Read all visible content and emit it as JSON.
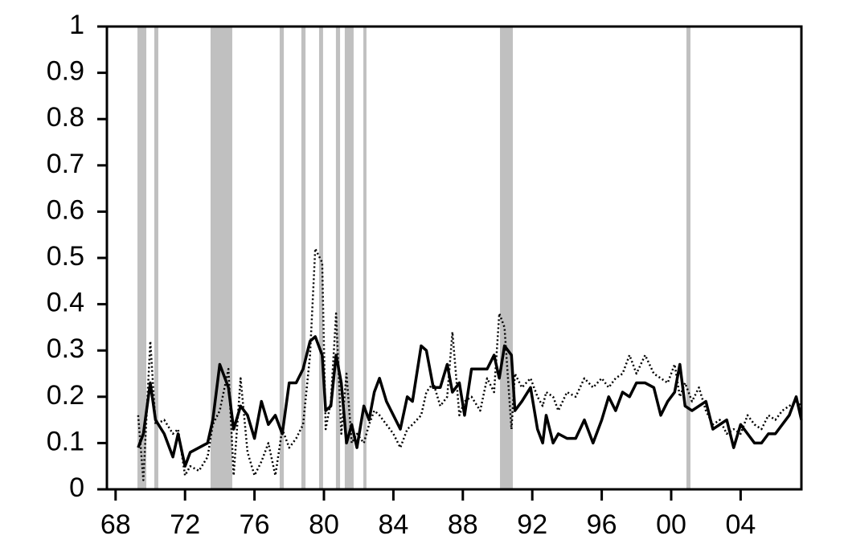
{
  "chart_data": {
    "type": "line",
    "x": [
      1969.3,
      1969.6,
      1970.0,
      1970.3,
      1970.8,
      1971.3,
      1971.6,
      1972.0,
      1972.3,
      1972.8,
      1973.3,
      1973.6,
      1974.0,
      1974.5,
      1974.8,
      1975.2,
      1975.6,
      1976.0,
      1976.4,
      1976.8,
      1977.2,
      1977.6,
      1978.0,
      1978.4,
      1978.8,
      1979.2,
      1979.5,
      1979.9,
      1980.1,
      1980.4,
      1980.7,
      1981.0,
      1981.3,
      1981.6,
      1981.9,
      1982.3,
      1982.6,
      1982.9,
      1983.2,
      1983.6,
      1984.0,
      1984.4,
      1984.8,
      1985.1,
      1985.6,
      1985.9,
      1986.3,
      1986.7,
      1987.1,
      1987.4,
      1987.8,
      1988.1,
      1988.5,
      1989.0,
      1989.4,
      1989.8,
      1990.1,
      1990.4,
      1990.8,
      1991.0,
      1991.4,
      1991.9,
      1992.3,
      1992.6,
      1992.8,
      1993.2,
      1993.5,
      1994.0,
      1994.5,
      1995.0,
      1995.5,
      1996.0,
      1996.4,
      1996.8,
      1997.2,
      1997.6,
      1998.0,
      1998.5,
      1999.0,
      1999.4,
      1999.8,
      2000.2,
      2000.5,
      2000.8,
      2001.2,
      2001.6,
      2002.0,
      2002.4,
      2002.8,
      2003.2,
      2003.6,
      2004.0,
      2004.4,
      2004.8,
      2005.2,
      2005.6,
      2006.0,
      2006.4,
      2006.8,
      2007.2,
      2007.5
    ],
    "series": [
      {
        "color": "#000000",
        "style": "solid",
        "values": [
          0.09,
          0.12,
          0.23,
          0.15,
          0.12,
          0.07,
          0.12,
          0.05,
          0.08,
          0.09,
          0.1,
          0.15,
          0.27,
          0.22,
          0.13,
          0.18,
          0.16,
          0.11,
          0.19,
          0.14,
          0.16,
          0.12,
          0.23,
          0.23,
          0.26,
          0.32,
          0.33,
          0.29,
          0.17,
          0.18,
          0.29,
          0.23,
          0.1,
          0.14,
          0.09,
          0.18,
          0.15,
          0.21,
          0.24,
          0.19,
          0.16,
          0.13,
          0.2,
          0.19,
          0.31,
          0.3,
          0.22,
          0.22,
          0.27,
          0.21,
          0.23,
          0.16,
          0.26,
          0.26,
          0.26,
          0.29,
          0.24,
          0.31,
          0.29,
          0.17,
          0.19,
          0.22,
          0.13,
          0.1,
          0.16,
          0.1,
          0.12,
          0.11,
          0.11,
          0.15,
          0.1,
          0.15,
          0.2,
          0.17,
          0.21,
          0.2,
          0.23,
          0.23,
          0.22,
          0.16,
          0.19,
          0.21,
          0.27,
          0.18,
          0.17,
          0.18,
          0.19,
          0.13,
          0.14,
          0.15,
          0.09,
          0.14,
          0.12,
          0.1,
          0.1,
          0.12,
          0.12,
          0.14,
          0.16,
          0.2,
          0.15
        ]
      },
      {
        "color": "#000000",
        "style": "dotted",
        "values": [
          0.16,
          0.02,
          0.32,
          0.14,
          0.15,
          0.12,
          0.13,
          0.03,
          0.05,
          0.04,
          0.07,
          0.14,
          0.17,
          0.26,
          0.03,
          0.24,
          0.08,
          0.03,
          0.06,
          0.1,
          0.03,
          0.13,
          0.09,
          0.11,
          0.14,
          0.29,
          0.52,
          0.49,
          0.13,
          0.19,
          0.38,
          0.12,
          0.25,
          0.1,
          0.12,
          0.1,
          0.14,
          0.17,
          0.16,
          0.14,
          0.12,
          0.09,
          0.13,
          0.14,
          0.16,
          0.21,
          0.23,
          0.18,
          0.2,
          0.34,
          0.16,
          0.19,
          0.2,
          0.17,
          0.24,
          0.21,
          0.38,
          0.35,
          0.13,
          0.25,
          0.22,
          0.24,
          0.2,
          0.18,
          0.21,
          0.2,
          0.17,
          0.21,
          0.2,
          0.24,
          0.22,
          0.24,
          0.22,
          0.24,
          0.25,
          0.29,
          0.25,
          0.29,
          0.25,
          0.24,
          0.23,
          0.27,
          0.2,
          0.23,
          0.19,
          0.22,
          0.17,
          0.14,
          0.15,
          0.12,
          0.13,
          0.12,
          0.16,
          0.14,
          0.13,
          0.16,
          0.15,
          0.17,
          0.18,
          0.19,
          0.18
        ]
      }
    ],
    "shaded_periods": [
      [
        1969.26,
        1969.77
      ],
      [
        1970.23,
        1970.46
      ],
      [
        1973.47,
        1974.72
      ],
      [
        1977.45,
        1977.69
      ],
      [
        1978.7,
        1978.94
      ],
      [
        1979.72,
        1979.95
      ],
      [
        1980.69,
        1980.93
      ],
      [
        1981.2,
        1981.71
      ],
      [
        1982.27,
        1982.45
      ],
      [
        1990.14,
        1990.88
      ],
      [
        2000.88,
        2001.11
      ]
    ],
    "shade_color": "#c0c0c0",
    "xlim": [
      1967.5,
      2007.5
    ],
    "xticks": [
      {
        "value": 1968,
        "label": "68"
      },
      {
        "value": 1972,
        "label": "72"
      },
      {
        "value": 1976,
        "label": "76"
      },
      {
        "value": 1980,
        "label": "80"
      },
      {
        "value": 1984,
        "label": "84"
      },
      {
        "value": 1988,
        "label": "88"
      },
      {
        "value": 1992,
        "label": "92"
      },
      {
        "value": 1996,
        "label": "96"
      },
      {
        "value": 2000,
        "label": "00"
      },
      {
        "value": 2004,
        "label": "04"
      }
    ],
    "ylim": [
      0,
      1
    ],
    "yticks": [
      0,
      0.1,
      0.2,
      0.3,
      0.4,
      0.5,
      0.6,
      0.7,
      0.8,
      0.9,
      1
    ]
  }
}
